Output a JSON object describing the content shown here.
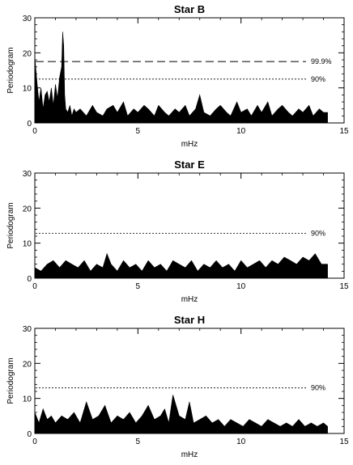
{
  "chart_data": [
    {
      "type": "area",
      "title": "Star B",
      "xlabel": "mHz",
      "ylabel": "Periodogram",
      "xlim": [
        0,
        15
      ],
      "ylim": [
        0,
        30
      ],
      "xticks": [
        "0",
        "5",
        "10",
        "15"
      ],
      "yticks": [
        "0",
        "10",
        "20",
        "30"
      ],
      "series": [
        {
          "x": [
            0,
            0.1,
            0.2,
            0.3,
            0.4,
            0.5,
            0.6,
            0.7,
            0.8,
            0.9,
            1.0,
            1.1,
            1.2,
            1.3,
            1.35,
            1.4,
            1.45,
            1.5,
            1.6,
            1.7,
            1.8,
            1.9,
            2.0,
            2.2,
            2.5,
            2.8,
            3.0,
            3.3,
            3.5,
            3.8,
            4.0,
            4.3,
            4.5,
            4.8,
            5.0,
            5.3,
            5.5,
            5.8,
            6.0,
            6.3,
            6.5,
            6.8,
            7.0,
            7.3,
            7.5,
            7.8,
            8.0,
            8.2,
            8.5,
            8.8,
            9.0,
            9.3,
            9.5,
            9.8,
            10.0,
            10.3,
            10.5,
            10.8,
            11.0,
            11.3,
            11.5,
            11.8,
            12.0,
            12.3,
            12.5,
            12.8,
            13.0,
            13.3,
            13.5,
            13.8,
            14.0,
            14.2
          ],
          "values": [
            19,
            12,
            6,
            10,
            4,
            8,
            9,
            6,
            10,
            5,
            11,
            7,
            13,
            16,
            26,
            22,
            8,
            4,
            3,
            5,
            2,
            4,
            3,
            4,
            2,
            5,
            3,
            2,
            4,
            5,
            3,
            6,
            2,
            4,
            3,
            5,
            4,
            2,
            5,
            3,
            2,
            4,
            3,
            5,
            2,
            4,
            8,
            3,
            2,
            4,
            5,
            3,
            2,
            6,
            3,
            4,
            2,
            5,
            3,
            6,
            2,
            4,
            5,
            3,
            2,
            4,
            3,
            5,
            2,
            4,
            3,
            3
          ]
        }
      ],
      "lines": [
        {
          "y": 17.5,
          "style": "dashed",
          "label": "99.9%"
        },
        {
          "y": 12.5,
          "style": "dotted",
          "label": "90%"
        }
      ]
    },
    {
      "type": "area",
      "title": "Star E",
      "xlabel": "mHz",
      "ylabel": "Periodogram",
      "xlim": [
        0,
        15
      ],
      "ylim": [
        0,
        30
      ],
      "xticks": [
        "0",
        "5",
        "10",
        "15"
      ],
      "yticks": [
        "0",
        "10",
        "20",
        "30"
      ],
      "series": [
        {
          "x": [
            0,
            0.3,
            0.6,
            0.9,
            1.2,
            1.5,
            1.8,
            2.1,
            2.4,
            2.7,
            3.0,
            3.3,
            3.5,
            3.7,
            4.0,
            4.3,
            4.6,
            4.9,
            5.2,
            5.5,
            5.8,
            6.1,
            6.4,
            6.7,
            7.0,
            7.3,
            7.6,
            7.9,
            8.2,
            8.5,
            8.8,
            9.1,
            9.4,
            9.7,
            10.0,
            10.3,
            10.6,
            10.9,
            11.2,
            11.5,
            11.8,
            12.1,
            12.4,
            12.7,
            13.0,
            13.3,
            13.6,
            13.9,
            14.2
          ],
          "values": [
            3,
            2,
            4,
            5,
            3,
            5,
            4,
            3,
            5,
            2,
            4,
            3,
            7,
            4,
            2,
            5,
            3,
            4,
            2,
            5,
            3,
            4,
            2,
            5,
            4,
            3,
            5,
            2,
            4,
            3,
            5,
            3,
            4,
            2,
            5,
            3,
            4,
            5,
            3,
            5,
            4,
            6,
            5,
            4,
            6,
            5,
            7,
            4,
            4
          ]
        }
      ],
      "lines": [
        {
          "y": 12.8,
          "style": "dotted",
          "label": "90%"
        }
      ]
    },
    {
      "type": "area",
      "title": "Star H",
      "xlabel": "mHz",
      "ylabel": "Periodogram",
      "xlim": [
        0,
        15
      ],
      "ylim": [
        0,
        30
      ],
      "xticks": [
        "0",
        "5",
        "10",
        "15"
      ],
      "yticks": [
        "0",
        "10",
        "20",
        "30"
      ],
      "series": [
        {
          "x": [
            0,
            0.2,
            0.4,
            0.6,
            0.8,
            1.0,
            1.3,
            1.6,
            1.9,
            2.2,
            2.5,
            2.8,
            3.1,
            3.4,
            3.7,
            4.0,
            4.3,
            4.6,
            4.9,
            5.2,
            5.5,
            5.8,
            6.1,
            6.3,
            6.5,
            6.7,
            7.0,
            7.3,
            7.5,
            7.7,
            8.0,
            8.3,
            8.6,
            8.9,
            9.2,
            9.5,
            9.8,
            10.1,
            10.4,
            10.7,
            11.0,
            11.3,
            11.6,
            11.9,
            12.2,
            12.5,
            12.8,
            13.1,
            13.4,
            13.7,
            14.0,
            14.2
          ],
          "values": [
            6,
            3,
            7,
            4,
            5,
            3,
            5,
            4,
            6,
            3,
            9,
            4,
            5,
            8,
            3,
            5,
            4,
            6,
            3,
            5,
            8,
            4,
            5,
            7,
            3,
            11,
            5,
            4,
            9,
            3,
            4,
            5,
            3,
            4,
            2,
            4,
            3,
            2,
            4,
            3,
            2,
            4,
            3,
            2,
            3,
            2,
            4,
            2,
            3,
            2,
            3,
            2
          ]
        }
      ],
      "lines": [
        {
          "y": 13.0,
          "style": "dotted",
          "label": "90%"
        }
      ]
    }
  ]
}
